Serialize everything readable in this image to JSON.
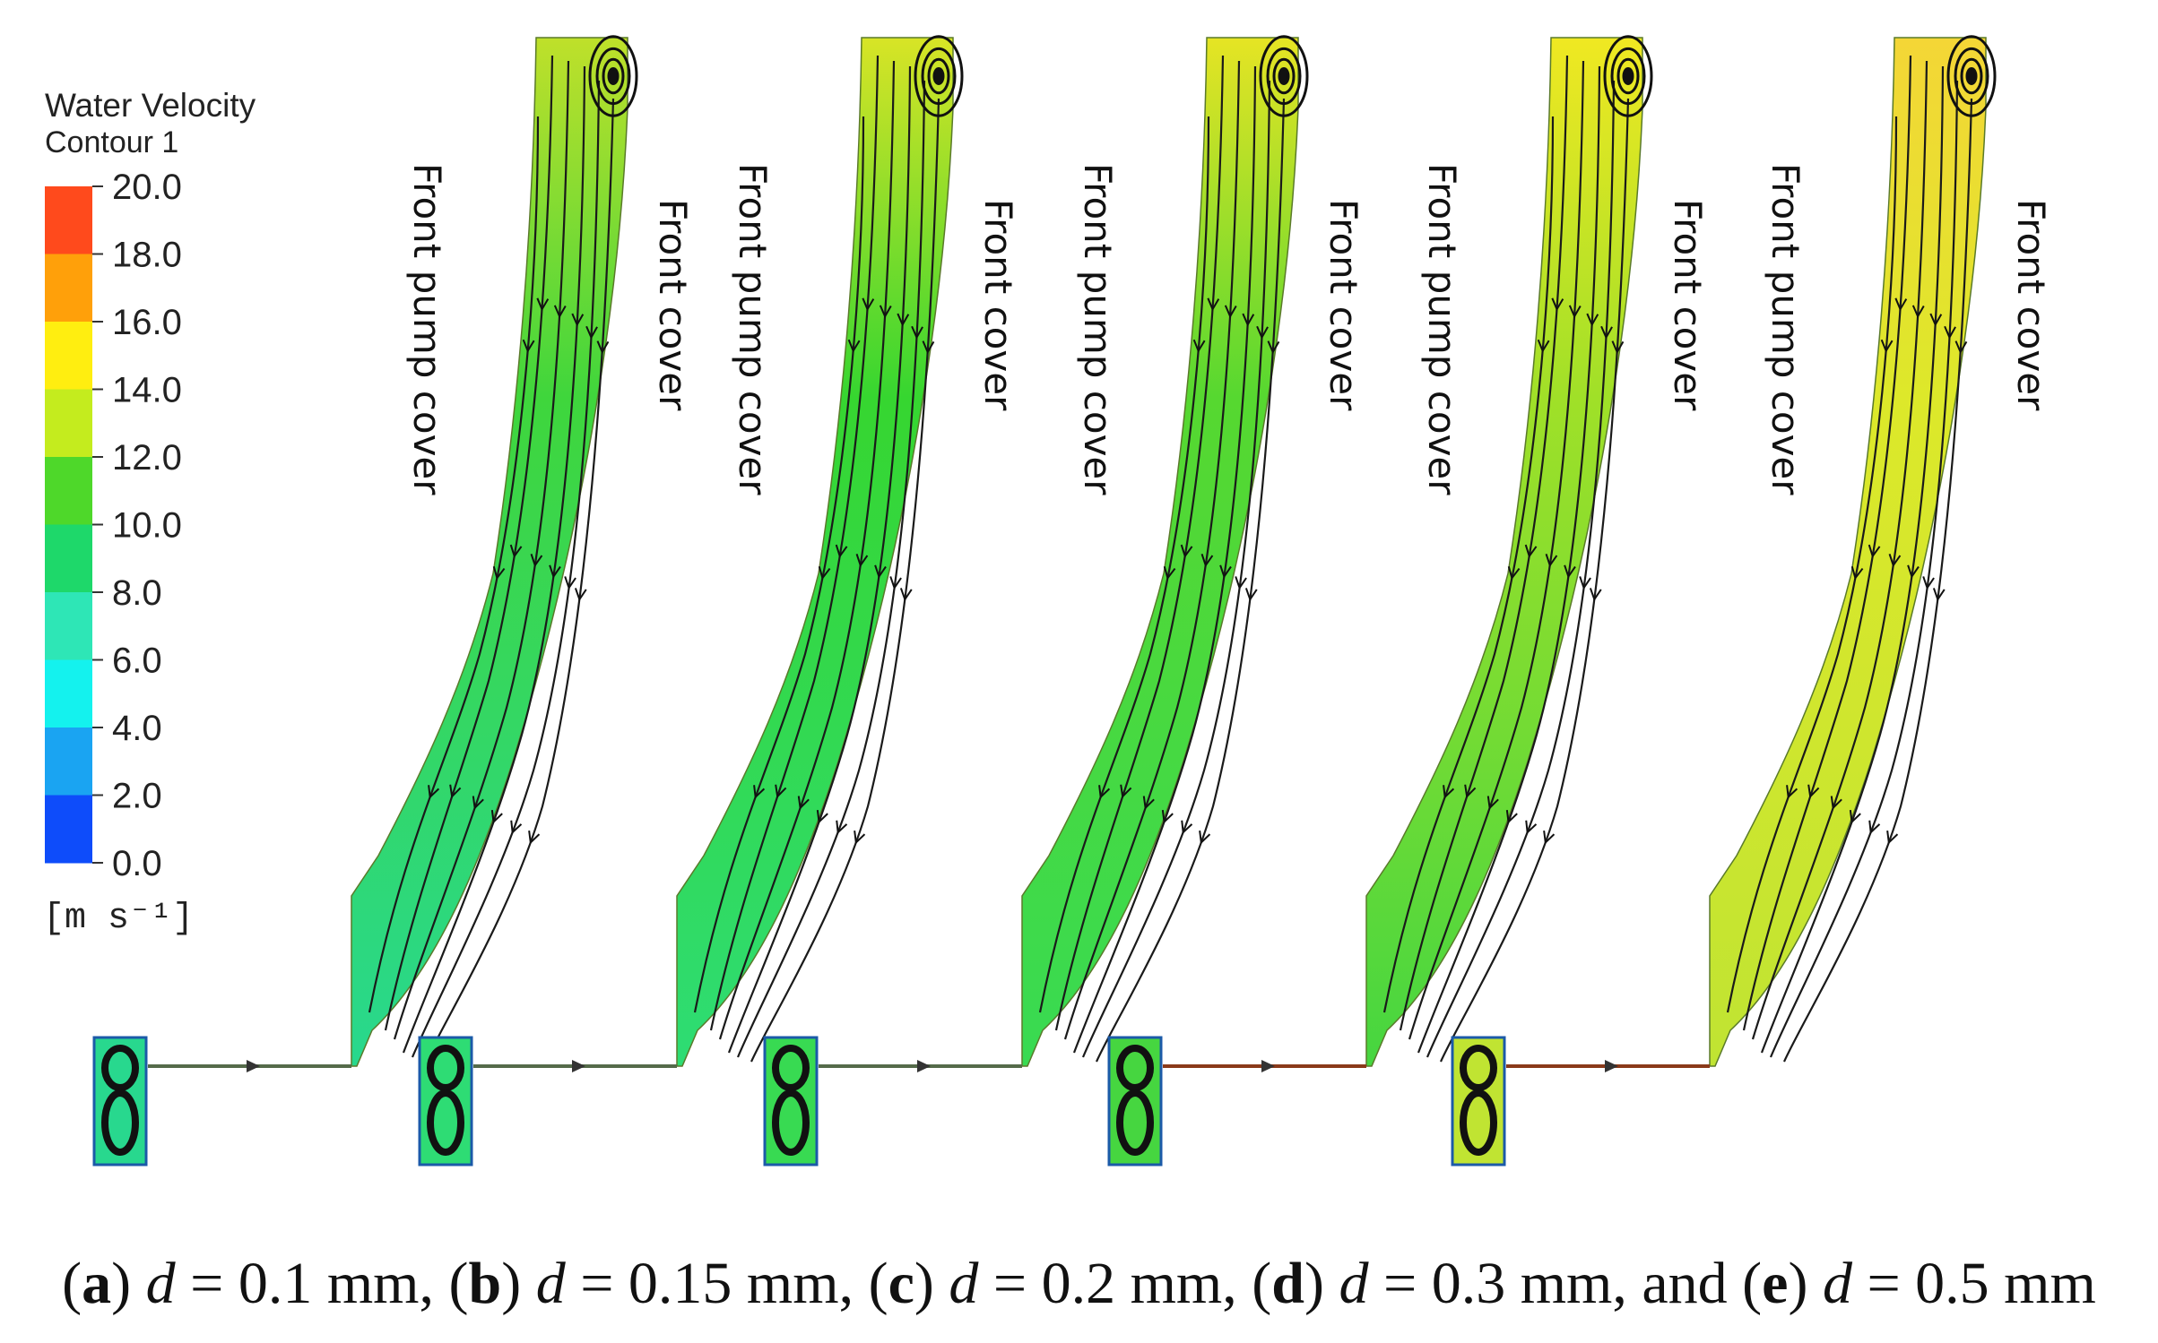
{
  "legend": {
    "title_line1": "Water Velocity",
    "title_line2": "Contour 1",
    "ticks": [
      "20.0",
      "18.0",
      "16.0",
      "14.0",
      "12.0",
      "10.0",
      "8.0",
      "6.0",
      "4.0",
      "2.0",
      "0.0"
    ],
    "colors": [
      "#ff4a1c",
      "#ffa00a",
      "#ffee10",
      "#c4ec1e",
      "#4ed82a",
      "#1ed86a",
      "#2ee6b6",
      "#14f2ee",
      "#1aa4f2",
      "#0e4cfa"
    ],
    "unit": "[m s⁻¹]"
  },
  "labels": {
    "pump_cover": "Front pump cover",
    "front_cover": "Front cover"
  },
  "panels": [
    {
      "id": "a",
      "d_mm": 0.1,
      "fill": [
        "#bfe02a",
        "#3fd63c",
        "#28d88e"
      ]
    },
    {
      "id": "b",
      "d_mm": 0.15,
      "fill": [
        "#d8e426",
        "#36d630",
        "#2edc74"
      ]
    },
    {
      "id": "c",
      "d_mm": 0.2,
      "fill": [
        "#e6e424",
        "#56d830",
        "#38da52"
      ]
    },
    {
      "id": "d",
      "d_mm": 0.3,
      "fill": [
        "#f0e822",
        "#a0e028",
        "#46d640"
      ]
    },
    {
      "id": "e",
      "d_mm": 0.5,
      "fill": [
        "#f4d636",
        "#dde82a",
        "#c0e432"
      ]
    }
  ],
  "caption": {
    "a": "a",
    "b": "b",
    "c": "c",
    "d": "d",
    "e": "e",
    "var": "d",
    "val_a": " = 0.1 mm, ",
    "val_b": " = 0.15 mm, ",
    "val_c": " = 0.2 mm, ",
    "val_d": " = 0.3 mm, and ",
    "val_e": " = 0.5 mm"
  }
}
